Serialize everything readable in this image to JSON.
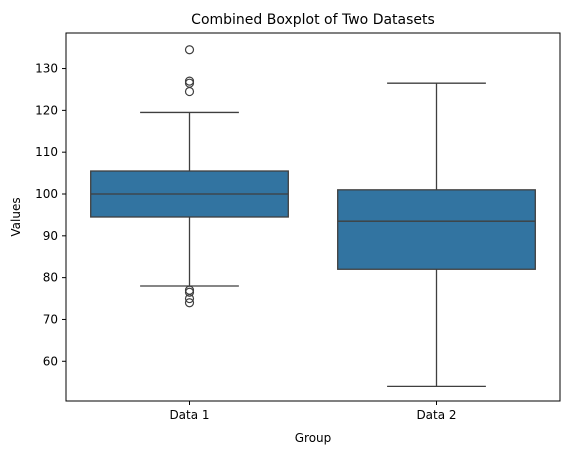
{
  "chart_data": {
    "type": "boxplot",
    "title": "Combined Boxplot of Two Datasets",
    "xlabel": "Group",
    "ylabel": "Values",
    "ylim": [
      50.5,
      138.5
    ],
    "yticks": [
      60,
      70,
      80,
      90,
      100,
      110,
      120,
      130
    ],
    "categories": [
      "Data 1",
      "Data 2"
    ],
    "boxes": [
      {
        "category": "Data 1",
        "whisker_low": 78,
        "q1": 94.5,
        "median": 100,
        "q3": 105.5,
        "whisker_high": 119.5,
        "outliers": [
          134.5,
          127,
          126.5,
          124.5,
          77,
          76.5,
          75,
          74
        ]
      },
      {
        "category": "Data 2",
        "whisker_low": 54,
        "q1": 82,
        "median": 93.5,
        "q3": 101,
        "whisker_high": 126.5,
        "outliers": []
      }
    ],
    "box_color": "#3274a1",
    "line_color": "#3f3f3f",
    "grid": false,
    "legend": "none"
  }
}
